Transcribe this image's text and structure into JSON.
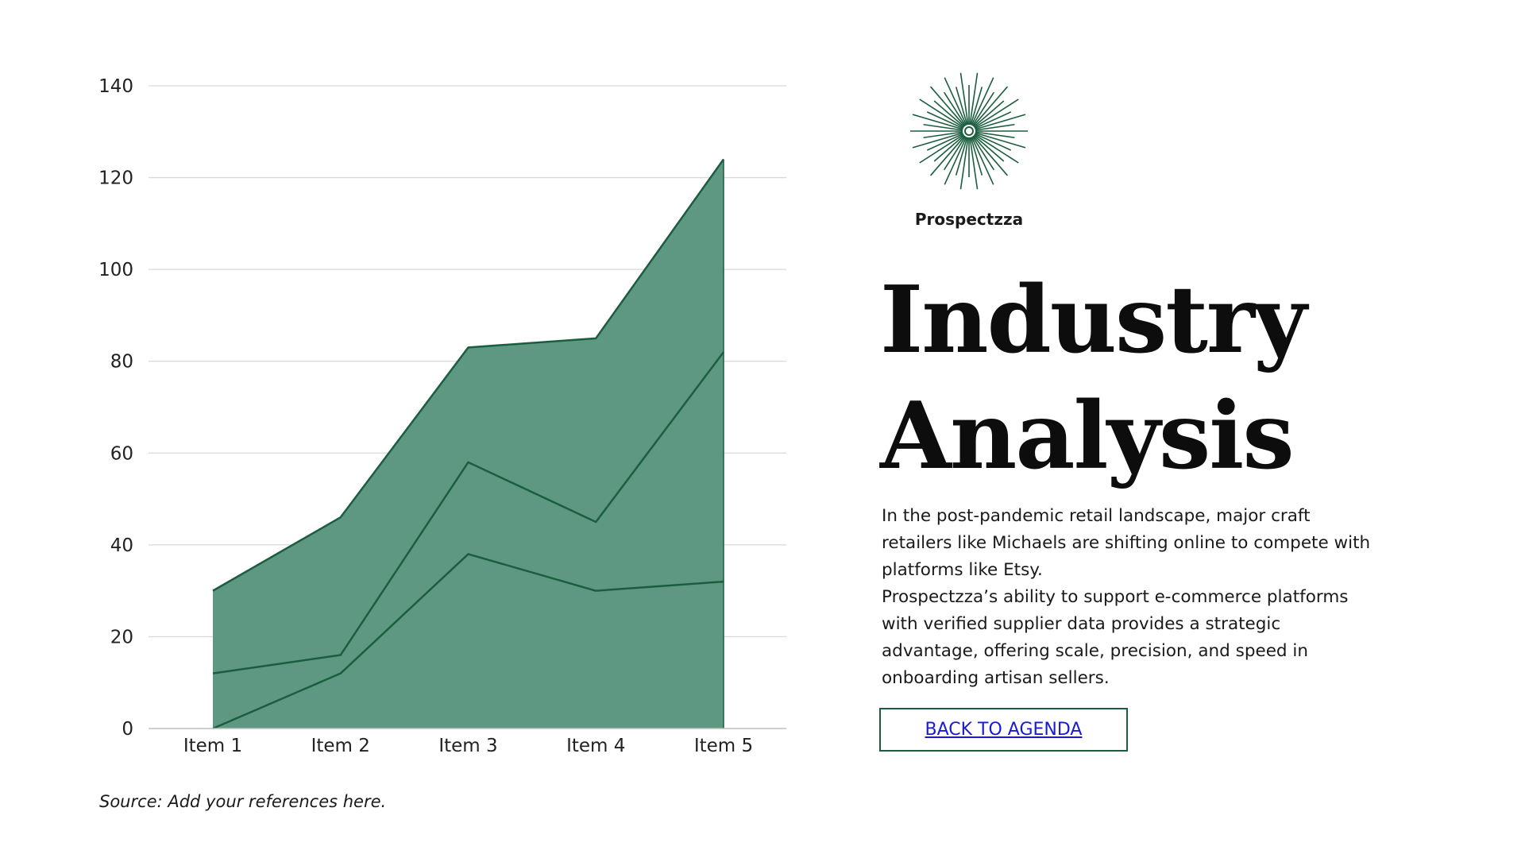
{
  "chart_data": {
    "type": "area",
    "stacked": true,
    "categories": [
      "Item 1",
      "Item 2",
      "Item 3",
      "Item 4",
      "Item 5"
    ],
    "series": [
      {
        "values": [
          0,
          12,
          38,
          30,
          32
        ]
      },
      {
        "values": [
          12,
          4,
          20,
          15,
          50
        ]
      },
      {
        "values": [
          18,
          30,
          25,
          40,
          42
        ]
      }
    ],
    "cumulative_top": [
      30,
      46,
      83,
      85,
      124
    ],
    "ylim": [
      0,
      140
    ],
    "yticks": [
      "0",
      "20",
      "40",
      "60",
      "80",
      "100",
      "120",
      "140"
    ],
    "grid": true,
    "legend": "none",
    "fill_color": "#5f9882",
    "line_color": "#1b5e3f",
    "title": "",
    "xlabel": "",
    "ylabel": ""
  },
  "source_note": "Source: Add your references here.",
  "brand": {
    "name": "Prospectzza",
    "logo_icon": "starburst-icon",
    "color": "#1b5e3f"
  },
  "title": {
    "line1": "Industry",
    "line2": "Analysis"
  },
  "body": {
    "paragraph1": "In the post-pandemic retail landscape, major craft retailers like Michaels are shifting online to compete with platforms like Etsy.",
    "paragraph2": "Prospectzza’s ability to support e-commerce platforms with verified supplier data provides a strategic advantage, offering scale, precision, and speed in onboarding artisan sellers."
  },
  "back_button": {
    "label": "BACK TO AGENDA"
  }
}
